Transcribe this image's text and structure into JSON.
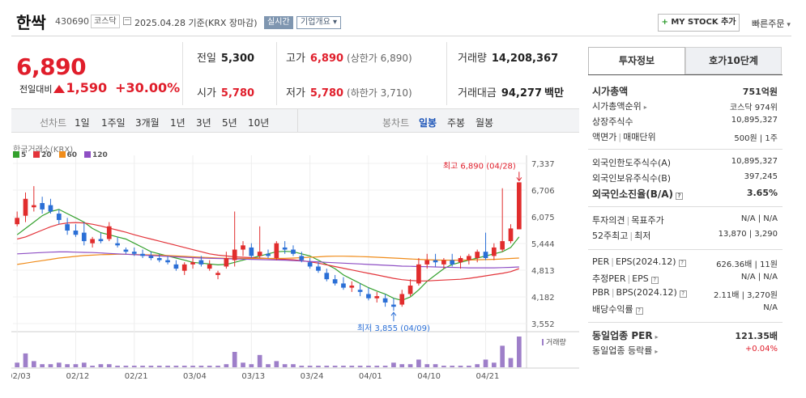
{
  "header": {
    "name": "한싹",
    "code": "430690",
    "market": "코스닥",
    "date_text": "2025.04.28  기준(KRX 장마감)",
    "realtime_label": "실시간",
    "company_info_label": "기업개요 ▾",
    "mystock_label": "MY STOCK 추가",
    "quick_order_label": "빠른주문"
  },
  "price": {
    "current": "6,890",
    "change_label": "전일대비",
    "change": "1,590",
    "change_pct": "+30.00%"
  },
  "summary": {
    "prev_label": "전일",
    "prev": "5,300",
    "high_label": "고가",
    "high": "6,890",
    "high_sub": "(상한가 6,890)",
    "volume_label": "거래량",
    "volume": "14,208,367",
    "open_label": "시가",
    "open": "5,780",
    "low_label": "저가",
    "low": "5,780",
    "low_sub": "(하한가 3,710)",
    "amount_label": "거래대금",
    "amount": "94,277",
    "amount_unit": "백만"
  },
  "toolbar": {
    "line_label": "선차트",
    "line_periods": [
      "1일",
      "1주일",
      "3개월",
      "1년",
      "3년",
      "5년",
      "10년"
    ],
    "candle_label": "봉차트",
    "candle_periods": [
      "일봉",
      "주봉",
      "월봉"
    ],
    "active_candle": "일봉"
  },
  "chart": {
    "source": "한국거래소(KRX)",
    "volume_label": "거래량",
    "max_annot": "최고 6,890 (04/28)",
    "min_annot": "최저 3,855 (04/09)"
  },
  "chart_data": {
    "type": "candlestick",
    "y_ticks": [
      7337,
      6706,
      6075,
      5444,
      4813,
      4182,
      3552
    ],
    "ylim": [
      3552,
      7337
    ],
    "x_tick_labels": [
      "02/03",
      "02/12",
      "02/21",
      "03/04",
      "03/13",
      "03/24",
      "04/01",
      "04/10",
      "04/21"
    ],
    "ma_legend": [
      {
        "name": "5",
        "color": "#33a02c"
      },
      {
        "name": "20",
        "color": "#e3343a"
      },
      {
        "name": "60",
        "color": "#f08c1a"
      },
      {
        "name": "120",
        "color": "#8e4fc4"
      }
    ],
    "candles": [
      {
        "o": 5900,
        "h": 6200,
        "l": 5850,
        "c": 6050
      },
      {
        "o": 6100,
        "h": 6650,
        "l": 5950,
        "c": 6500
      },
      {
        "o": 6300,
        "h": 6800,
        "l": 6200,
        "c": 6350
      },
      {
        "o": 6400,
        "h": 6550,
        "l": 6150,
        "c": 6250
      },
      {
        "o": 6350,
        "h": 6500,
        "l": 6150,
        "c": 6200
      },
      {
        "o": 6150,
        "h": 6250,
        "l": 5900,
        "c": 6000
      },
      {
        "o": 5900,
        "h": 6050,
        "l": 5650,
        "c": 5750
      },
      {
        "o": 5750,
        "h": 5900,
        "l": 5600,
        "c": 5650
      },
      {
        "o": 5700,
        "h": 5950,
        "l": 5400,
        "c": 5500
      },
      {
        "o": 5450,
        "h": 5600,
        "l": 5350,
        "c": 5550
      },
      {
        "o": 5550,
        "h": 5700,
        "l": 5450,
        "c": 5500
      },
      {
        "o": 5550,
        "h": 5950,
        "l": 5500,
        "c": 5850
      },
      {
        "o": 5450,
        "h": 5600,
        "l": 5350,
        "c": 5400
      },
      {
        "o": 5300,
        "h": 5350,
        "l": 5200,
        "c": 5250
      },
      {
        "o": 5250,
        "h": 5350,
        "l": 5150,
        "c": 5200
      },
      {
        "o": 5200,
        "h": 5300,
        "l": 5100,
        "c": 5150
      },
      {
        "o": 5150,
        "h": 5250,
        "l": 5050,
        "c": 5100
      },
      {
        "o": 5100,
        "h": 5200,
        "l": 5000,
        "c": 5050
      },
      {
        "o": 5050,
        "h": 5150,
        "l": 4950,
        "c": 5000
      },
      {
        "o": 4950,
        "h": 5050,
        "l": 4800,
        "c": 4850
      },
      {
        "o": 4800,
        "h": 5000,
        "l": 4700,
        "c": 4950
      },
      {
        "o": 4950,
        "h": 5100,
        "l": 4850,
        "c": 5000
      },
      {
        "o": 5050,
        "h": 5150,
        "l": 4900,
        "c": 4950
      },
      {
        "o": 4850,
        "h": 5050,
        "l": 4800,
        "c": 4950
      },
      {
        "o": 4700,
        "h": 4800,
        "l": 4600,
        "c": 4750
      },
      {
        "o": 4900,
        "h": 5250,
        "l": 4850,
        "c": 5100
      },
      {
        "o": 5050,
        "h": 6200,
        "l": 4900,
        "c": 5300
      },
      {
        "o": 5300,
        "h": 5500,
        "l": 5150,
        "c": 5400
      },
      {
        "o": 5350,
        "h": 5450,
        "l": 5100,
        "c": 5150
      },
      {
        "o": 5150,
        "h": 5850,
        "l": 5100,
        "c": 5250
      },
      {
        "o": 5200,
        "h": 5300,
        "l": 5100,
        "c": 5150
      },
      {
        "o": 5100,
        "h": 5500,
        "l": 5050,
        "c": 5450
      },
      {
        "o": 5350,
        "h": 5500,
        "l": 5200,
        "c": 5300
      },
      {
        "o": 5300,
        "h": 5400,
        "l": 5150,
        "c": 5200
      },
      {
        "o": 5150,
        "h": 5250,
        "l": 5000,
        "c": 5050
      },
      {
        "o": 5000,
        "h": 5100,
        "l": 4850,
        "c": 4900
      },
      {
        "o": 4900,
        "h": 5000,
        "l": 4750,
        "c": 4800
      },
      {
        "o": 4750,
        "h": 4850,
        "l": 4550,
        "c": 4600
      },
      {
        "o": 4600,
        "h": 4700,
        "l": 4450,
        "c": 4500
      },
      {
        "o": 4500,
        "h": 4650,
        "l": 4350,
        "c": 4400
      },
      {
        "o": 4400,
        "h": 4550,
        "l": 4300,
        "c": 4450
      },
      {
        "o": 4350,
        "h": 4500,
        "l": 4200,
        "c": 4300
      },
      {
        "o": 4250,
        "h": 4400,
        "l": 4100,
        "c": 4150
      },
      {
        "o": 4150,
        "h": 4300,
        "l": 4050,
        "c": 4200
      },
      {
        "o": 4150,
        "h": 4250,
        "l": 3950,
        "c": 4050
      },
      {
        "o": 4000,
        "h": 4150,
        "l": 3855,
        "c": 3950
      },
      {
        "o": 4000,
        "h": 4350,
        "l": 3950,
        "c": 4250
      },
      {
        "o": 4250,
        "h": 4600,
        "l": 4200,
        "c": 4450
      },
      {
        "o": 4500,
        "h": 5100,
        "l": 4450,
        "c": 4950
      },
      {
        "o": 4950,
        "h": 5200,
        "l": 4850,
        "c": 5050
      },
      {
        "o": 5050,
        "h": 5200,
        "l": 4900,
        "c": 5000
      },
      {
        "o": 4950,
        "h": 5100,
        "l": 4850,
        "c": 5050
      },
      {
        "o": 5050,
        "h": 5200,
        "l": 4900,
        "c": 4950
      },
      {
        "o": 5000,
        "h": 5150,
        "l": 4850,
        "c": 5100
      },
      {
        "o": 5050,
        "h": 5200,
        "l": 4950,
        "c": 5150
      },
      {
        "o": 5100,
        "h": 5300,
        "l": 5000,
        "c": 5250
      },
      {
        "o": 5250,
        "h": 5700,
        "l": 5050,
        "c": 5100
      },
      {
        "o": 5150,
        "h": 5450,
        "l": 5050,
        "c": 5350
      },
      {
        "o": 5300,
        "h": 6750,
        "l": 5250,
        "c": 5500
      },
      {
        "o": 5500,
        "h": 5900,
        "l": 5450,
        "c": 5800
      },
      {
        "o": 5780,
        "h": 6890,
        "l": 5780,
        "c": 6890
      }
    ],
    "ma5": [
      5650,
      5800,
      5950,
      6100,
      6200,
      6250,
      6150,
      6050,
      5950,
      5800,
      5700,
      5650,
      5600,
      5550,
      5450,
      5350,
      5250,
      5200,
      5150,
      5100,
      5050,
      5000,
      4980,
      4960,
      4940,
      4950,
      5000,
      5050,
      5100,
      5150,
      5200,
      5250,
      5260,
      5250,
      5200,
      5150,
      5050,
      4950,
      4850,
      4700,
      4600,
      4500,
      4400,
      4320,
      4250,
      4150,
      4100,
      4180,
      4350,
      4550,
      4700,
      4850,
      4950,
      5000,
      5050,
      5100,
      5150,
      5200,
      5250,
      5350,
      5600
    ],
    "ma20": [
      5550,
      5600,
      5680,
      5760,
      5840,
      5900,
      5930,
      5940,
      5930,
      5900,
      5860,
      5810,
      5760,
      5710,
      5650,
      5600,
      5550,
      5500,
      5450,
      5400,
      5350,
      5300,
      5250,
      5200,
      5170,
      5150,
      5130,
      5120,
      5110,
      5100,
      5090,
      5080,
      5070,
      5060,
      5040,
      5010,
      4980,
      4940,
      4900,
      4860,
      4820,
      4780,
      4740,
      4700,
      4660,
      4620,
      4590,
      4570,
      4560,
      4560,
      4570,
      4580,
      4590,
      4600,
      4620,
      4650,
      4680,
      4710,
      4740,
      4780,
      4850
    ],
    "ma60": [
      4950,
      4980,
      5010,
      5040,
      5070,
      5100,
      5120,
      5140,
      5160,
      5170,
      5180,
      5185,
      5190,
      5190,
      5185,
      5180,
      5175,
      5170,
      5160,
      5150,
      5140,
      5130,
      5120,
      5110,
      5100,
      5095,
      5090,
      5090,
      5090,
      5090,
      5090,
      5090,
      5095,
      5100,
      5110,
      5120,
      5130,
      5140,
      5145,
      5145,
      5140,
      5135,
      5130,
      5120,
      5110,
      5100,
      5090,
      5080,
      5070,
      5060,
      5055,
      5050,
      5050,
      5050,
      5055,
      5060,
      5065,
      5070,
      5080,
      5090,
      5100
    ],
    "ma120": [
      5200,
      5210,
      5220,
      5230,
      5240,
      5245,
      5245,
      5240,
      5235,
      5230,
      5220,
      5210,
      5200,
      5190,
      5180,
      5170,
      5160,
      5150,
      5140,
      5130,
      5120,
      5110,
      5100,
      5095,
      5090,
      5085,
      5080,
      5075,
      5070,
      5065,
      5060,
      5055,
      5050,
      5040,
      5030,
      5020,
      5010,
      5000,
      4990,
      4980,
      4970,
      4960,
      4950,
      4940,
      4930,
      4920,
      4910,
      4905,
      4900,
      4895,
      4890,
      4885,
      4880,
      4875,
      4870,
      4870,
      4870,
      4870,
      4875,
      4880,
      4890
    ],
    "volume": [
      3,
      9,
      4,
      2,
      2,
      3,
      2,
      2,
      3,
      1,
      2,
      2,
      1,
      1,
      1,
      1,
      1,
      1,
      1,
      1,
      1,
      1,
      1,
      1,
      1,
      2,
      10,
      3,
      2,
      8,
      2,
      4,
      2,
      2,
      1,
      1,
      1,
      1,
      1,
      1,
      1,
      1,
      1,
      1,
      1,
      3,
      2,
      2,
      5,
      2,
      2,
      1,
      1,
      1,
      1,
      2,
      5,
      3,
      14,
      6,
      20
    ]
  },
  "right_panel": {
    "tabs": [
      "투자정보",
      "호가10단계"
    ],
    "market_cap_label": "시가총액",
    "market_cap": "751억원",
    "cap_rank_label": "시가총액순위",
    "cap_rank": "코스닥 974위",
    "shares_label": "상장주식수",
    "shares": "10,895,327",
    "par_label": "액면가",
    "unit_label": "매매단위",
    "par_unit": "500원 | 1주",
    "foreign_limit_label": "외국인한도주식수(A)",
    "foreign_limit": "10,895,327",
    "foreign_hold_label": "외국인보유주식수(B)",
    "foreign_hold": "397,245",
    "foreign_ratio_label": "외국인소진율(B/A)",
    "foreign_ratio": "3.65%",
    "opinion_label": "투자의견",
    "target_label": "목표주가",
    "opinion_target": "N/A | N/A",
    "w52_high_label": "52주최고",
    "w52_low_label": "최저",
    "w52": "13,870 | 3,290",
    "per_label": "PER",
    "eps_label": "EPS(2024.12)",
    "per_eps": "626.36배 | 11원",
    "est_per_label": "추정PER",
    "est_eps_label": "EPS",
    "est_per_eps": "N/A | N/A",
    "pbr_label": "PBR",
    "bps_label": "BPS(2024.12)",
    "pbr_bps": "2.11배 | 3,270원",
    "dividend_label": "배당수익률",
    "dividend": "N/A",
    "sector_per_label": "동일업종 PER",
    "sector_per": "121.35배",
    "sector_chg_label": "동일업종 등락률",
    "sector_chg": "+0.04%"
  }
}
